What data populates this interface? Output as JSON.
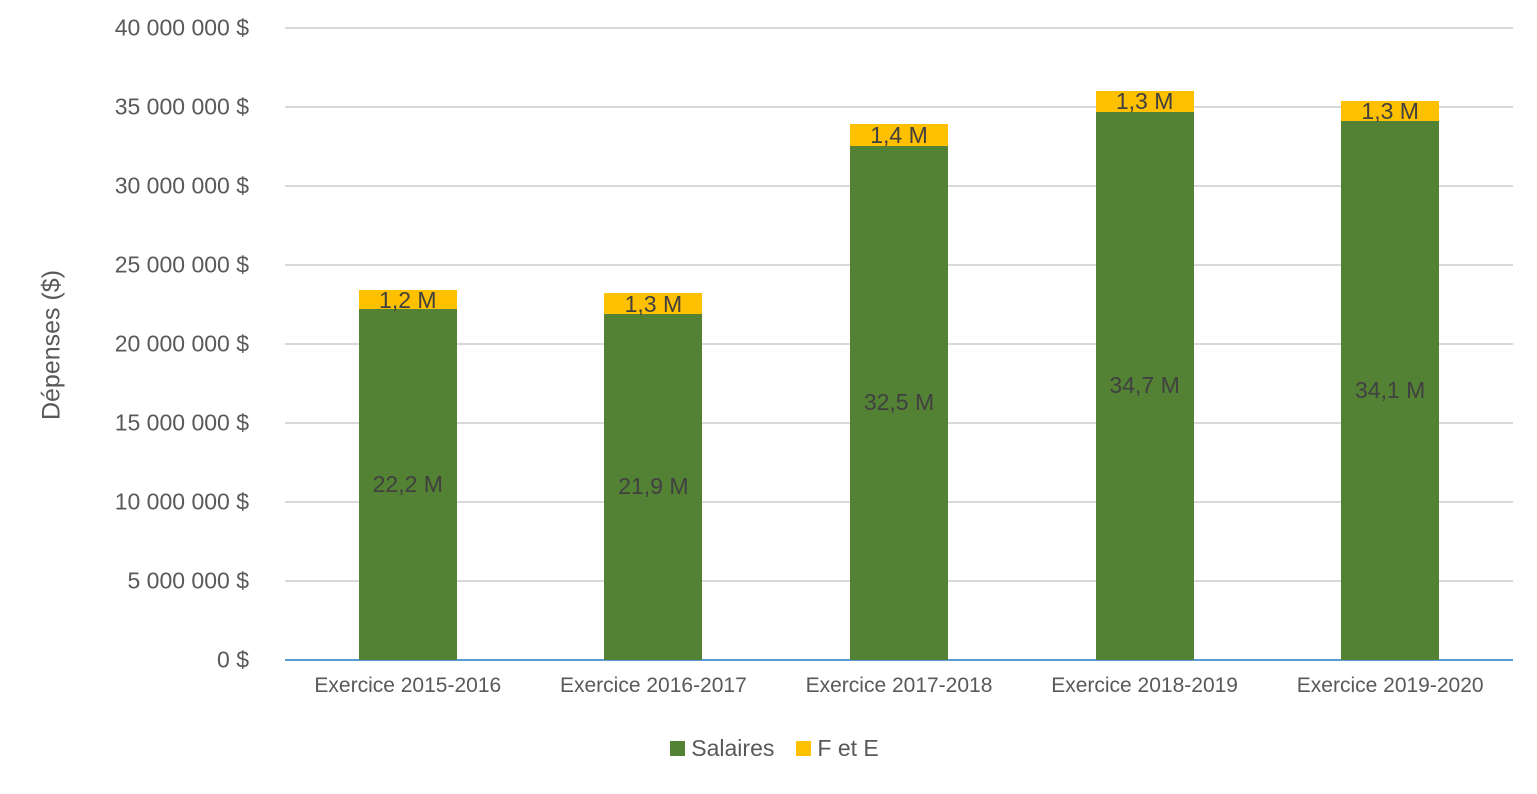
{
  "chart_data": {
    "type": "bar",
    "stacked": true,
    "title": "",
    "xlabel": "",
    "ylabel": "Dépenses ($)",
    "ylim": [
      0,
      40000000
    ],
    "yticks": [
      0,
      5000000,
      10000000,
      15000000,
      20000000,
      25000000,
      30000000,
      35000000,
      40000000
    ],
    "ytick_labels": [
      "0 $",
      "5 000 000 $",
      "10 000 000 $",
      "15 000 000 $",
      "20 000 000 $",
      "25 000 000 $",
      "30 000 000 $",
      "35 000 000 $",
      "40 000 000 $"
    ],
    "categories": [
      "Exercice 2015-2016",
      "Exercice 2016-2017",
      "Exercice 2017-2018",
      "Exercice 2018-2019",
      "Exercice 2019-2020"
    ],
    "series": [
      {
        "name": "Salaires",
        "color": "#548235",
        "values": [
          22200000,
          21900000,
          32500000,
          34700000,
          34100000
        ],
        "labels": [
          "22,2 M",
          "21,9 M",
          "32,5 M",
          "34,7 M",
          "34,1 M"
        ]
      },
      {
        "name": "F et E",
        "color": "#ffc000",
        "values": [
          1200000,
          1300000,
          1400000,
          1300000,
          1300000
        ],
        "labels": [
          "1,2 M",
          "1,3 M",
          "1,4 M",
          "1,3 M",
          "1,3 M"
        ]
      }
    ],
    "grid": true,
    "legend_position": "bottom"
  },
  "legend": [
    {
      "label": "Salaires",
      "color": "#548235"
    },
    {
      "label": "F et E",
      "color": "#ffc000"
    }
  ]
}
